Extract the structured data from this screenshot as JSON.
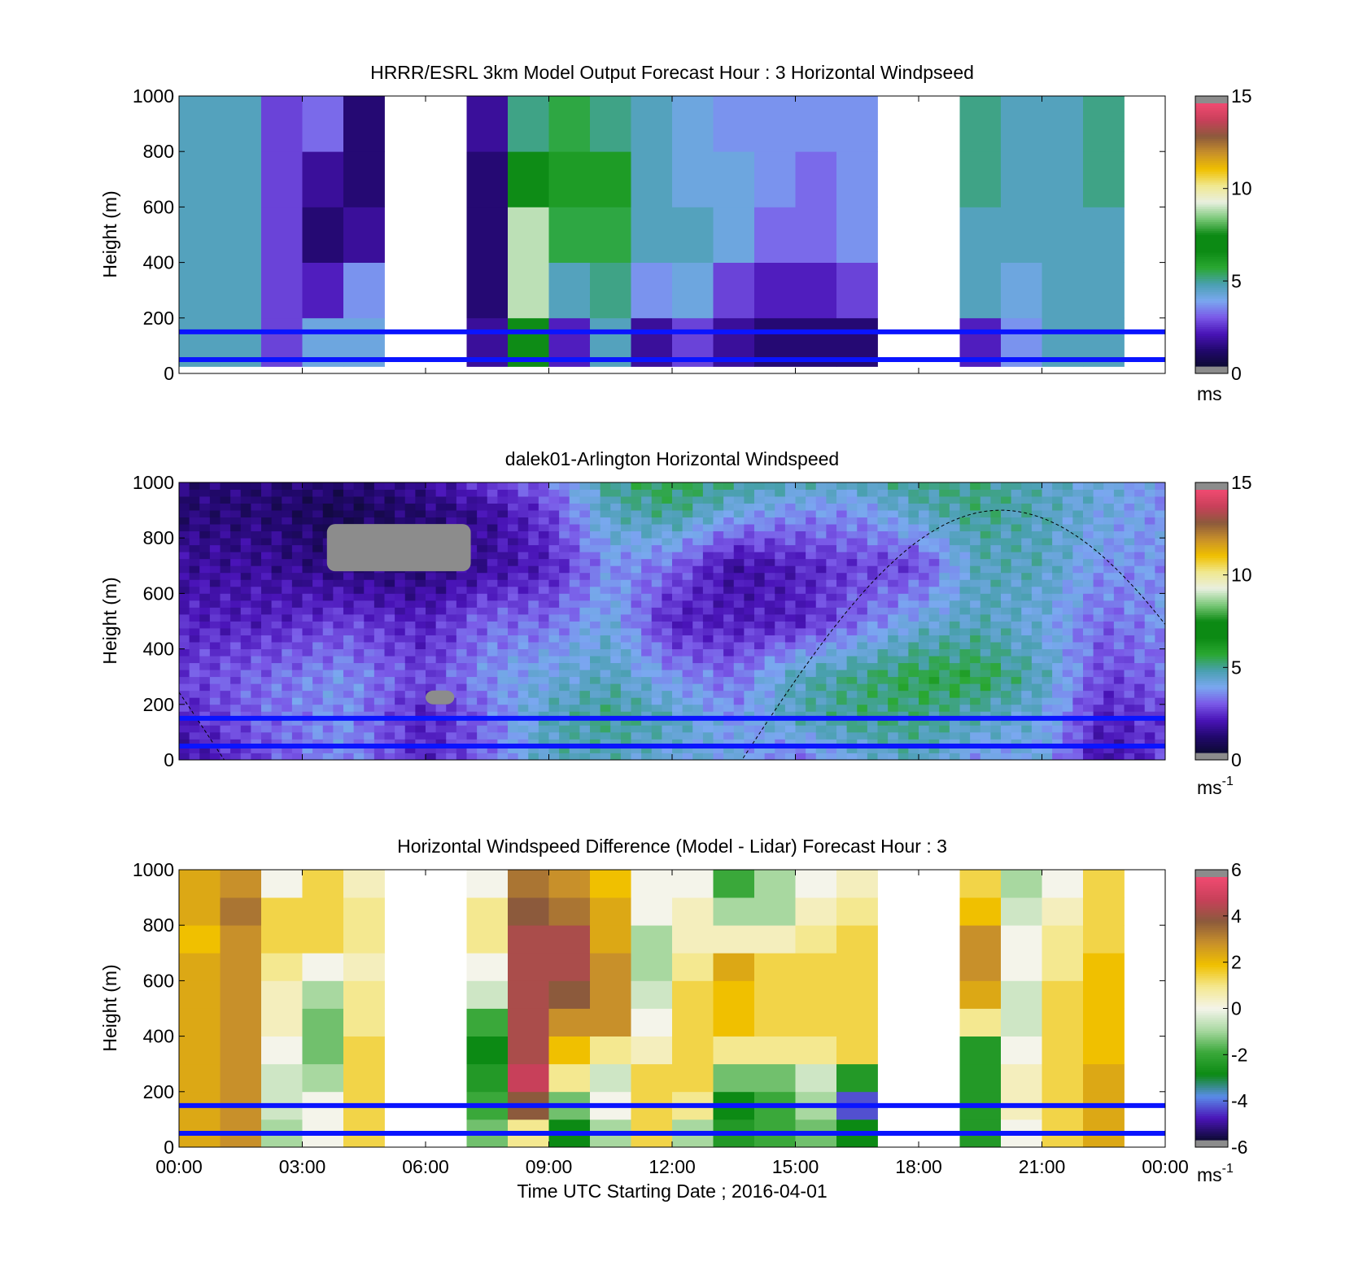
{
  "figure": {
    "x_axis": {
      "label": "Time UTC  Starting Date ; 2016-04-01",
      "tick_labels": [
        "00:00",
        "03:00",
        "06:00",
        "09:00",
        "12:00",
        "15:00",
        "18:00",
        "21:00",
        "00:00"
      ]
    }
  },
  "colors": {
    "overlay_lines": "#0a14ff",
    "speed_scale": [
      "#0d0a33",
      "#22086e",
      "#4a14b8",
      "#7a5ae8",
      "#7aa8f0",
      "#4aa0b0",
      "#2aa832",
      "#0c8a14",
      "#0c8a14",
      "#7ac878",
      "#e8f0e0",
      "#f0e890",
      "#f0c000",
      "#c8902a",
      "#8c5a3c",
      "#c8405a",
      "#f04a70"
    ],
    "diff_scale": [
      "#0d0a33",
      "#4a14b8",
      "#5a8ce8",
      "#0c8a14",
      "#3aa83a",
      "#a8d8a0",
      "#f4f4ea",
      "#f4e890",
      "#f0c000",
      "#c8902a",
      "#8c5a3c",
      "#c8405a",
      "#f04a70"
    ]
  },
  "chart_data": [
    {
      "type": "heatmap",
      "title": "HRRR/ESRL 3km Model Output   Forecast Hour : 3 Horizontal Windpseed",
      "ylabel": "Height (m)",
      "ylim": [
        0,
        1000
      ],
      "y_ticks": [
        "0",
        "200",
        "400",
        "600",
        "800",
        "1000"
      ],
      "xlim_hours": [
        0,
        24
      ],
      "colorbar": {
        "ticks": [
          "0",
          "5",
          "10",
          "15"
        ],
        "range": [
          0,
          15
        ],
        "unit": "ms"
      },
      "hour_columns_start": [
        0,
        1,
        2,
        3,
        4,
        7,
        8,
        9,
        10,
        11,
        12,
        13,
        14,
        15,
        16,
        19,
        20,
        21,
        22
      ],
      "height_bins_m": [
        [
          25,
          200
        ],
        [
          200,
          400
        ],
        [
          400,
          600
        ],
        [
          600,
          800
        ],
        [
          800,
          1000
        ]
      ],
      "values_ms": [
        [
          4.5,
          4.5,
          4.5,
          4.5,
          4.5
        ],
        [
          4.5,
          4.5,
          4.5,
          4.5,
          4.5
        ],
        [
          2.5,
          2.5,
          2.5,
          2.5,
          2.5
        ],
        [
          4.0,
          2.0,
          1.0,
          1.5,
          3.0
        ],
        [
          4.0,
          3.5,
          1.5,
          1.0,
          1.0
        ],
        [
          1.5,
          1.0,
          1.0,
          1.0,
          1.5
        ],
        [
          6.5,
          9.0,
          9.0,
          6.5,
          5.0
        ],
        [
          2.0,
          4.5,
          5.5,
          6.0,
          5.5
        ],
        [
          4.5,
          5.0,
          5.5,
          6.0,
          5.0
        ],
        [
          1.5,
          3.5,
          4.5,
          4.5,
          4.5
        ],
        [
          2.5,
          4.0,
          4.5,
          4.0,
          4.0
        ],
        [
          1.5,
          2.5,
          4.0,
          4.0,
          3.5
        ],
        [
          1.0,
          2.0,
          3.0,
          3.5,
          3.5
        ],
        [
          1.0,
          2.0,
          3.0,
          3.0,
          3.5
        ],
        [
          1.0,
          2.5,
          3.5,
          3.5,
          3.5
        ],
        [
          2.0,
          4.5,
          4.5,
          5.0,
          5.0
        ],
        [
          3.5,
          4.0,
          4.5,
          4.5,
          4.5
        ],
        [
          4.5,
          4.5,
          4.5,
          4.5,
          4.5
        ],
        [
          4.5,
          4.5,
          4.5,
          5.0,
          5.0
        ]
      ],
      "reference_lines_m": [
        150,
        50
      ]
    },
    {
      "type": "heatmap",
      "title": "dalek01-Arlington  Horizontal Windspeed",
      "ylabel": "Height (m)",
      "ylim": [
        0,
        1000
      ],
      "y_ticks": [
        "0",
        "200",
        "400",
        "600",
        "800",
        "1000"
      ],
      "xlim_hours": [
        0,
        24
      ],
      "colorbar": {
        "ticks": [
          "0",
          "5",
          "10",
          "15"
        ],
        "range": [
          0,
          15
        ],
        "unit": "ms",
        "unit_exp": "-1"
      },
      "time_nodes_h": [
        0,
        2,
        4,
        6,
        7.5,
        9,
        10.5,
        12,
        13.5,
        15,
        16.5,
        18,
        19.5,
        21,
        22.5,
        24
      ],
      "height_nodes_m": [
        0,
        150,
        300,
        500,
        700,
        900,
        1000
      ],
      "values_ms": [
        [
          1.5,
          2.0,
          2.5,
          2.0,
          1.5,
          1.0,
          1.0
        ],
        [
          2.5,
          3.0,
          3.0,
          2.0,
          1.5,
          1.0,
          1.0
        ],
        [
          3.5,
          3.5,
          3.5,
          2.5,
          1.0,
          0.5,
          1.0
        ],
        [
          2.0,
          2.0,
          2.5,
          2.0,
          1.0,
          1.0,
          1.5
        ],
        [
          3.0,
          3.0,
          3.5,
          3.0,
          1.5,
          1.5,
          2.5
        ],
        [
          4.5,
          4.5,
          4.0,
          3.0,
          2.0,
          2.5,
          3.0
        ],
        [
          4.5,
          5.0,
          4.5,
          4.0,
          3.5,
          4.5,
          5.0
        ],
        [
          4.0,
          4.5,
          3.5,
          2.0,
          3.0,
          5.0,
          5.5
        ],
        [
          4.0,
          3.5,
          3.0,
          2.0,
          1.5,
          4.0,
          5.0
        ],
        [
          3.0,
          4.5,
          4.5,
          2.0,
          2.0,
          3.5,
          4.5
        ],
        [
          4.0,
          5.0,
          5.0,
          3.0,
          2.5,
          3.5,
          4.5
        ],
        [
          4.5,
          5.0,
          5.5,
          4.0,
          2.5,
          4.5,
          5.0
        ],
        [
          3.5,
          4.5,
          5.5,
          4.5,
          4.5,
          5.0,
          5.0
        ],
        [
          4.0,
          4.0,
          4.5,
          4.0,
          4.5,
          4.5,
          4.5
        ],
        [
          1.5,
          2.0,
          2.5,
          3.0,
          3.5,
          4.0,
          4.0
        ],
        [
          2.5,
          2.5,
          3.0,
          3.5,
          3.5,
          3.5,
          3.5
        ]
      ],
      "gray_regions": [
        {
          "t": [
            3.6,
            7.1
          ],
          "h": [
            680,
            850
          ]
        },
        {
          "t": [
            6.0,
            6.7
          ],
          "h": [
            200,
            250
          ]
        }
      ],
      "dashed_curve": {
        "phase_start_h": 13.7,
        "peak_h": 20.0,
        "peak_m": 900
      },
      "reference_lines_m": [
        150,
        50
      ]
    },
    {
      "type": "heatmap",
      "title": "Horizontal Windspeed Difference (Model - Lidar) Forecast Hour : 3",
      "ylabel": "Height (m)",
      "ylim": [
        0,
        1000
      ],
      "y_ticks": [
        "0",
        "200",
        "400",
        "600",
        "800",
        "1000"
      ],
      "xlim_hours": [
        0,
        24
      ],
      "colorbar": {
        "ticks": [
          "-6",
          "-4",
          "-2",
          "0",
          "2",
          "4",
          "6"
        ],
        "range": [
          -6,
          6
        ],
        "unit": "ms",
        "unit_exp": "-1"
      },
      "hour_columns_start": [
        0,
        1,
        2,
        3,
        4,
        7,
        8,
        9,
        10,
        11,
        12,
        13,
        14,
        15,
        16,
        19,
        20,
        21,
        22
      ],
      "height_bins_m": [
        [
          0,
          100
        ],
        [
          100,
          200
        ],
        [
          200,
          300
        ],
        [
          300,
          400
        ],
        [
          400,
          500
        ],
        [
          500,
          600
        ],
        [
          600,
          700
        ],
        [
          700,
          800
        ],
        [
          800,
          900
        ],
        [
          900,
          1000
        ]
      ],
      "values_ms": [
        [
          2.5,
          2.5,
          2.5,
          2.5,
          2.5,
          2.5,
          2.5,
          2.0,
          2.5,
          2.5
        ],
        [
          3.0,
          3.0,
          3.0,
          3.0,
          3.0,
          3.0,
          3.0,
          3.0,
          3.5,
          3.0
        ],
        [
          -1.0,
          -0.5,
          -0.5,
          0.0,
          0.5,
          0.5,
          1.0,
          1.5,
          1.5,
          0.0
        ],
        [
          0.0,
          0.0,
          -1.0,
          -1.5,
          -1.5,
          -1.0,
          0.0,
          1.5,
          1.5,
          1.5
        ],
        [
          1.5,
          1.5,
          1.5,
          1.5,
          1.0,
          1.0,
          0.5,
          1.0,
          1.0,
          0.5
        ],
        [
          -1.5,
          -2.0,
          -2.5,
          -3.0,
          -2.0,
          -0.5,
          0.0,
          1.0,
          1.0,
          0.0
        ],
        [
          1.0,
          4.0,
          5.0,
          4.5,
          4.5,
          4.5,
          4.5,
          4.5,
          4.0,
          3.5
        ],
        [
          -3.0,
          -1.5,
          1.0,
          2.0,
          3.0,
          4.0,
          4.5,
          4.5,
          3.5,
          3.0
        ],
        [
          -1.0,
          0.0,
          -0.5,
          1.0,
          3.0,
          3.0,
          3.0,
          2.5,
          2.5,
          2.0
        ],
        [
          1.5,
          1.5,
          1.5,
          0.5,
          0.0,
          -0.5,
          -1.0,
          -1.0,
          0.0,
          0.0
        ],
        [
          -1.0,
          1.0,
          1.5,
          1.5,
          1.5,
          1.5,
          1.0,
          0.5,
          0.5,
          0.0
        ],
        [
          -2.5,
          -3.0,
          -1.5,
          1.0,
          2.0,
          2.0,
          2.5,
          0.5,
          -1.0,
          -2.0
        ],
        [
          -2.0,
          -2.0,
          -1.5,
          1.0,
          1.5,
          1.5,
          1.5,
          0.5,
          -1.0,
          -1.0
        ],
        [
          -1.5,
          -1.0,
          -0.5,
          1.0,
          1.5,
          1.5,
          1.5,
          1.0,
          0.5,
          0.0
        ],
        [
          -3.0,
          -4.5,
          -2.5,
          1.5,
          1.5,
          1.5,
          1.5,
          1.5,
          1.0,
          0.5
        ],
        [
          -2.5,
          -2.5,
          -2.5,
          -2.5,
          1.0,
          2.5,
          3.0,
          3.0,
          2.0,
          1.5
        ],
        [
          0.0,
          0.5,
          0.5,
          0.0,
          -0.5,
          -0.5,
          0.0,
          0.0,
          -0.5,
          -1.0
        ],
        [
          1.5,
          1.5,
          1.5,
          1.5,
          1.5,
          1.5,
          1.0,
          1.0,
          0.5,
          0.0
        ],
        [
          2.5,
          2.5,
          2.5,
          2.0,
          2.0,
          2.0,
          2.0,
          1.5,
          1.5,
          1.5
        ]
      ],
      "reference_lines_m": [
        150,
        50
      ]
    }
  ]
}
